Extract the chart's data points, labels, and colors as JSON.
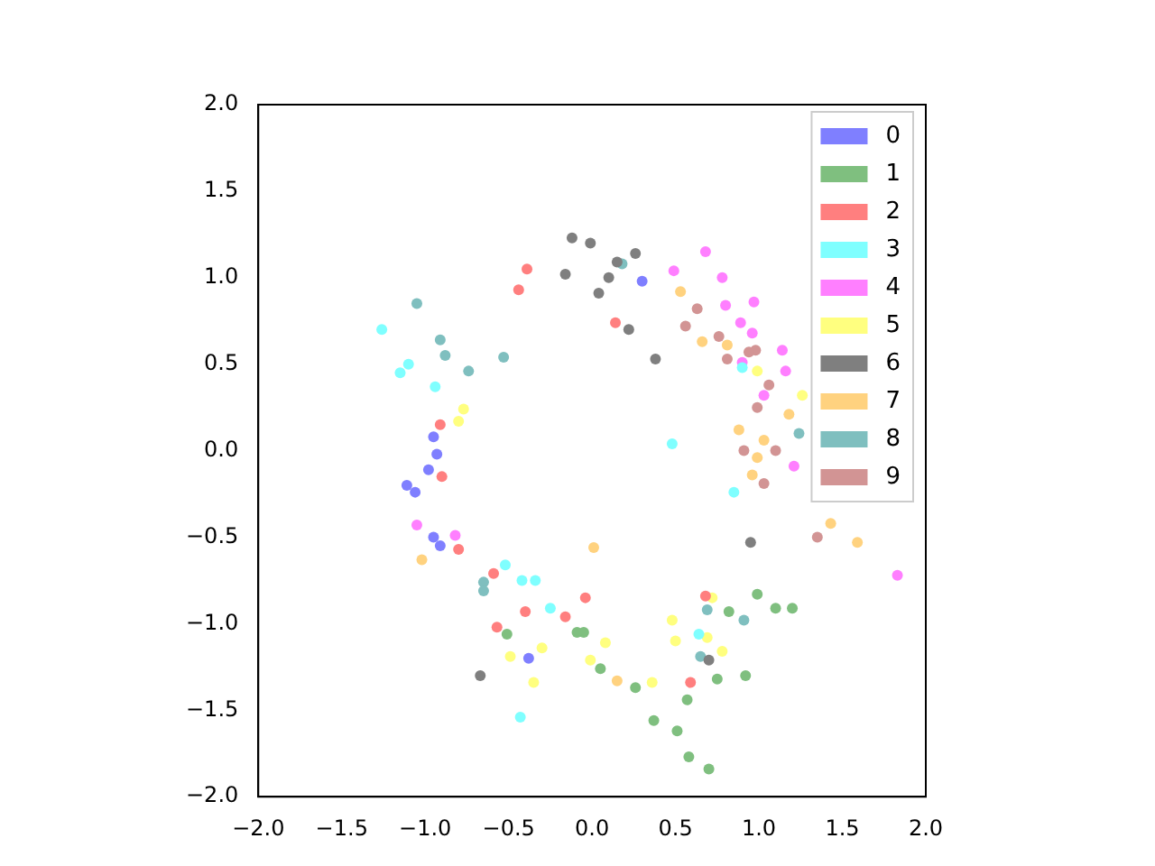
{
  "chart_data": {
    "type": "scatter",
    "marker": "circle",
    "grid": false,
    "legend": "top right",
    "xlim": [
      -2,
      2
    ],
    "ylim": [
      -2,
      2
    ],
    "xticks": [
      {
        "value": -2,
        "label": "−2.0"
      },
      {
        "value": -1.5,
        "label": "−1.5"
      },
      {
        "value": -1,
        "label": "−1.0"
      },
      {
        "value": -0.5,
        "label": "−0.5"
      },
      {
        "value": 0,
        "label": "0.0"
      },
      {
        "value": 0.5,
        "label": "0.5"
      },
      {
        "value": 1,
        "label": "1.0"
      },
      {
        "value": 1.5,
        "label": "1.5"
      },
      {
        "value": 2,
        "label": "2.0"
      }
    ],
    "yticks": [
      {
        "value": -2,
        "label": "−2.0"
      },
      {
        "value": -1.5,
        "label": "−1.5"
      },
      {
        "value": -1,
        "label": "−1.0"
      },
      {
        "value": -0.5,
        "label": "−0.5"
      },
      {
        "value": 0,
        "label": "0.0"
      },
      {
        "value": 0.5,
        "label": "0.5"
      },
      {
        "value": 1,
        "label": "1.0"
      },
      {
        "value": 1.5,
        "label": "1.5"
      },
      {
        "value": 2,
        "label": "2.0"
      }
    ],
    "series": [
      {
        "name": "0",
        "color": "#7f7fff",
        "x": [
          -0.38,
          0.3,
          -0.95,
          -0.91,
          -0.95,
          -0.93,
          -0.98,
          -1.11,
          -1.06
        ],
        "values": [
          -1.2,
          0.98,
          -0.5,
          -0.55,
          0.08,
          -0.02,
          -0.11,
          -0.2,
          -0.24
        ]
      },
      {
        "name": "1",
        "color": "#7fbf7f",
        "x": [
          0.82,
          0.99,
          1.1,
          1.2,
          -0.05,
          0.05,
          0.26,
          0.37,
          0.51,
          0.58,
          0.7,
          0.57,
          0.75,
          0.92,
          -0.09,
          -0.51
        ],
        "values": [
          -0.93,
          -0.83,
          -0.91,
          -0.91,
          -1.05,
          -1.26,
          -1.37,
          -1.56,
          -1.62,
          -1.77,
          -1.84,
          -1.44,
          -1.32,
          -1.3,
          -1.05,
          -1.06
        ]
      },
      {
        "name": "2",
        "color": "#ff7f7f",
        "x": [
          -0.57,
          -0.16,
          -0.04,
          -0.59,
          -0.8,
          -0.4,
          0.68,
          0.59,
          -0.44,
          -0.39,
          -0.91,
          -0.9,
          0.14
        ],
        "values": [
          -1.02,
          -0.96,
          -0.85,
          -0.71,
          -0.57,
          -0.93,
          -0.84,
          -1.34,
          0.93,
          1.05,
          0.15,
          -0.15,
          0.74
        ]
      },
      {
        "name": "3",
        "color": "#7fffff",
        "x": [
          0.85,
          0.9,
          0.48,
          -0.42,
          -0.34,
          -0.25,
          -0.52,
          -1.1,
          -1.15,
          -1.26,
          -0.94,
          0.64,
          -0.43
        ],
        "values": [
          -0.24,
          0.48,
          0.04,
          -0.75,
          -0.75,
          -0.91,
          -0.66,
          0.5,
          0.45,
          0.7,
          0.37,
          -1.06,
          -1.54
        ]
      },
      {
        "name": "4",
        "color": "#ff7fff",
        "x": [
          0.49,
          0.68,
          0.78,
          0.97,
          0.89,
          0.96,
          0.9,
          1.14,
          1.16,
          1.03,
          1.21,
          0.8,
          -1.05,
          -0.82,
          1.83
        ],
        "values": [
          1.04,
          1.15,
          1.0,
          0.86,
          0.74,
          0.68,
          0.51,
          0.58,
          0.46,
          0.32,
          -0.09,
          0.84,
          -0.43,
          -0.49,
          -0.72
        ]
      },
      {
        "name": "5",
        "color": "#ffff7f",
        "x": [
          0.72,
          0.48,
          0.69,
          0.5,
          0.78,
          0.08,
          -0.01,
          0.36,
          -0.49,
          -0.35,
          -0.3,
          -0.77,
          -0.8,
          0.99,
          1.26
        ],
        "values": [
          -0.85,
          -0.98,
          -1.08,
          -1.1,
          -1.16,
          -1.11,
          -1.21,
          -1.34,
          -1.19,
          -1.34,
          -1.14,
          0.24,
          0.17,
          0.46,
          0.32
        ]
      },
      {
        "name": "6",
        "color": "#7f7f7f",
        "x": [
          0.38,
          -0.01,
          0.1,
          0.22,
          0.15,
          0.26,
          0.04,
          0.95,
          0.7,
          -0.16,
          -0.12,
          -0.67
        ],
        "values": [
          0.53,
          1.2,
          1.0,
          0.7,
          1.09,
          1.14,
          0.91,
          -0.53,
          -1.21,
          1.02,
          1.23,
          -1.3
        ]
      },
      {
        "name": "7",
        "color": "#ffd27f",
        "x": [
          0.66,
          0.81,
          0.88,
          1.03,
          0.99,
          0.96,
          1.18,
          0.53,
          0.01,
          1.43,
          1.59,
          0.15,
          -1.02
        ],
        "values": [
          0.63,
          0.61,
          0.12,
          0.06,
          -0.04,
          -0.14,
          0.21,
          0.92,
          -0.56,
          -0.42,
          -0.53,
          -1.33,
          -0.63
        ]
      },
      {
        "name": "8",
        "color": "#7fbfbf",
        "x": [
          1.24,
          0.69,
          0.65,
          0.91,
          -0.65,
          -0.65,
          -1.05,
          -0.88,
          -0.91,
          -0.53,
          -0.74,
          0.18
        ],
        "values": [
          0.1,
          -0.92,
          -1.19,
          -0.98,
          -0.76,
          -0.81,
          0.85,
          0.55,
          0.64,
          0.54,
          0.46,
          1.08
        ]
      },
      {
        "name": "9",
        "color": "#d29494",
        "x": [
          0.76,
          0.81,
          0.98,
          0.94,
          1.06,
          0.99,
          0.91,
          1.1,
          0.56,
          0.63,
          1.03,
          1.35
        ],
        "values": [
          0.66,
          0.53,
          0.58,
          0.57,
          0.38,
          0.25,
          0.0,
          0.0,
          0.72,
          0.82,
          -0.19,
          -0.5
        ]
      }
    ]
  }
}
